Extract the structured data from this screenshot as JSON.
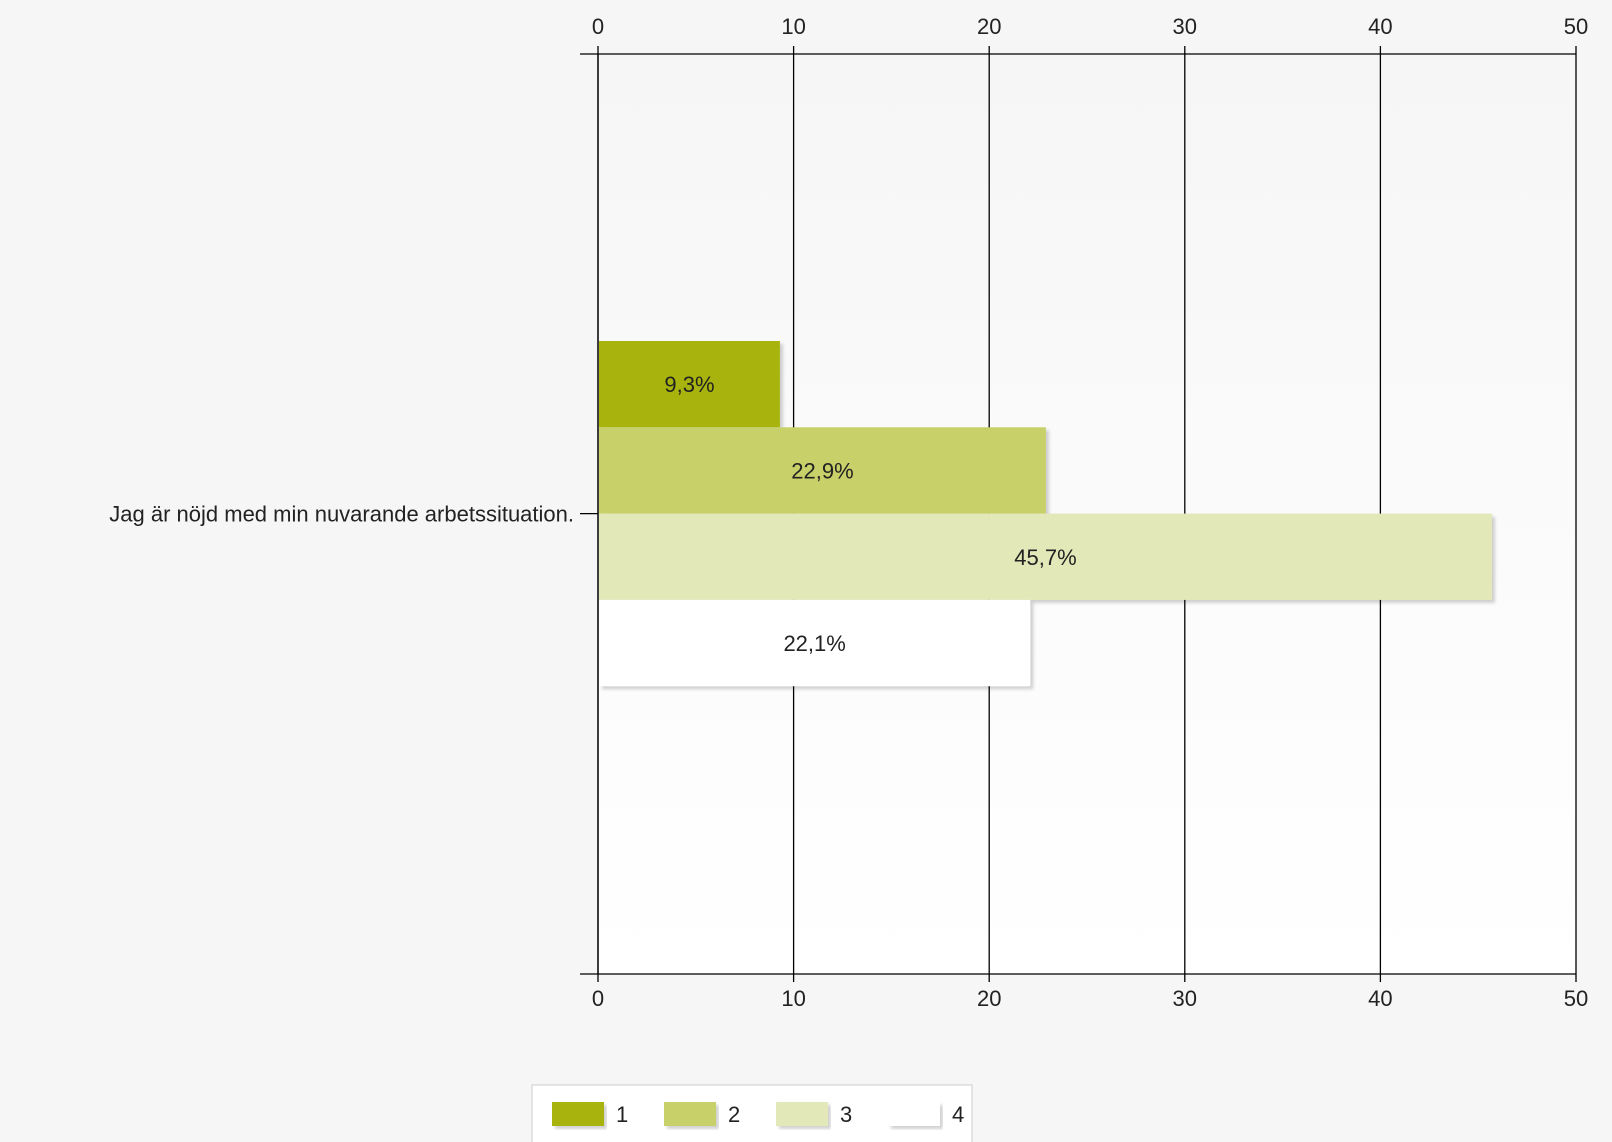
{
  "chart_data": {
    "type": "bar",
    "orientation": "horizontal",
    "categories": [
      "Jag är nöjd med min nuvarande arbetssituation."
    ],
    "series": [
      {
        "name": "1",
        "values": [
          9.3
        ],
        "label": "9,3%",
        "color": "#a8b411"
      },
      {
        "name": "2",
        "values": [
          22.9
        ],
        "label": "22,9%",
        "color": "#c8d06a"
      },
      {
        "name": "3",
        "values": [
          45.7
        ],
        "label": "45,7%",
        "color": "#e2e8b8"
      },
      {
        "name": "4",
        "values": [
          22.1
        ],
        "label": "22,1%",
        "color": "#ffffff"
      }
    ],
    "xlim": [
      0,
      50
    ],
    "ticks": [
      0,
      10,
      20,
      30,
      40,
      50
    ],
    "tick_labels": [
      "0",
      "10",
      "20",
      "30",
      "40",
      "50"
    ],
    "grid": true,
    "legend": "bottom-center",
    "plot_background": "#ffffff",
    "page_background": "#f6f6f6"
  }
}
